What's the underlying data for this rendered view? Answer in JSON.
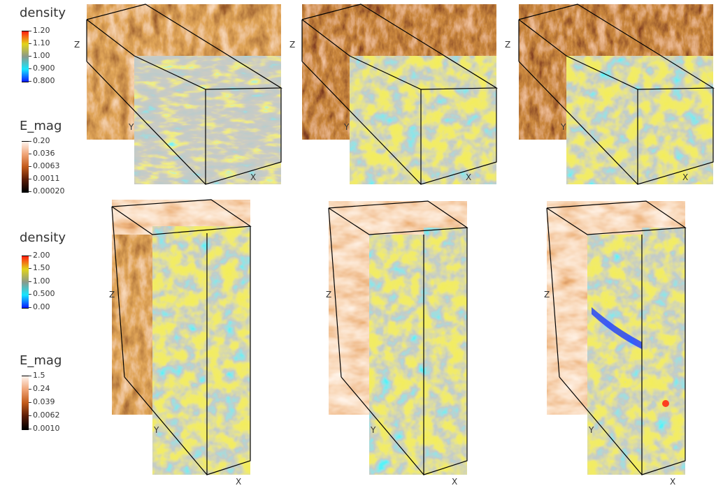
{
  "legends": [
    {
      "id": "density-top",
      "title": "density",
      "ticks": [
        "1.20",
        "1.10",
        "1.00",
        "0.900",
        "0.800"
      ],
      "colormap": "density"
    },
    {
      "id": "emag-top",
      "title": "E_mag",
      "ticks": [
        "0.20",
        "0.036",
        "0.0063",
        "0.0011",
        "0.00020"
      ],
      "colormap": "emag"
    },
    {
      "id": "density-bottom",
      "title": "density",
      "ticks": [
        "2.00",
        "1.50",
        "1.00",
        "0.500",
        "0.00"
      ],
      "colormap": "density"
    },
    {
      "id": "emag-bottom",
      "title": "E_mag",
      "ticks": [
        "1.5",
        "0.24",
        "0.039",
        "0.0062",
        "0.0010"
      ],
      "colormap": "emag"
    }
  ],
  "axes": {
    "x": "X",
    "y": "Y",
    "z": "Z"
  },
  "colors": {
    "density_scale": [
      "#0a1cff",
      "#16e6ff",
      "#8a9a8a",
      "#e2d418",
      "#ff2010"
    ],
    "emag_scale": [
      "#000000",
      "#5a1c06",
      "#c25a1a",
      "#f0a476",
      "#fff4ee"
    ]
  }
}
